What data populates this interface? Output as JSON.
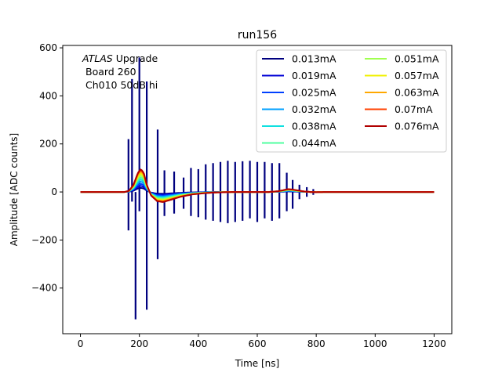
{
  "chart_data": {
    "type": "line",
    "title": "run156",
    "xlabel": "Time [ns]",
    "ylabel": "Amplitude [ADC counts]",
    "xlim": [
      -60,
      1260
    ],
    "ylim": [
      -590,
      610
    ],
    "xticks": [
      0,
      200,
      400,
      600,
      800,
      1000,
      1200
    ],
    "yticks": [
      -400,
      -200,
      0,
      200,
      400,
      600
    ],
    "xtick_labels": [
      "0",
      "200",
      "400",
      "600",
      "800",
      "1000",
      "1200"
    ],
    "ytick_labels": [
      "−400",
      "−200",
      "0",
      "200",
      "400",
      "600"
    ],
    "annotation": {
      "line1_italic": "ATLAS",
      "line1_rest": " Upgrade",
      "line2": "Board 260",
      "line3": "Ch010 50dB hi"
    },
    "legend_position": "upper-right",
    "spikes_first_series": [
      {
        "t": 163,
        "top": 220,
        "bottom": -160
      },
      {
        "t": 175,
        "top": 470,
        "bottom": -40
      },
      {
        "t": 187,
        "top": 0,
        "bottom": -530
      },
      {
        "t": 200,
        "top": 560,
        "bottom": -80
      },
      {
        "t": 225,
        "top": 460,
        "bottom": -490
      },
      {
        "t": 262,
        "top": 260,
        "bottom": -280
      },
      {
        "t": 285,
        "top": 90,
        "bottom": -100
      },
      {
        "t": 318,
        "top": 85,
        "bottom": -90
      },
      {
        "t": 350,
        "top": 60,
        "bottom": -70
      },
      {
        "t": 375,
        "top": 100,
        "bottom": -100
      },
      {
        "t": 400,
        "top": 95,
        "bottom": -105
      },
      {
        "t": 425,
        "top": 115,
        "bottom": -115
      },
      {
        "t": 450,
        "top": 120,
        "bottom": -120
      },
      {
        "t": 475,
        "top": 125,
        "bottom": -125
      },
      {
        "t": 500,
        "top": 130,
        "bottom": -130
      },
      {
        "t": 525,
        "top": 125,
        "bottom": -125
      },
      {
        "t": 550,
        "top": 128,
        "bottom": -120
      },
      {
        "t": 575,
        "top": 130,
        "bottom": -110
      },
      {
        "t": 600,
        "top": 125,
        "bottom": -125
      },
      {
        "t": 625,
        "top": 125,
        "bottom": -110
      },
      {
        "t": 650,
        "top": 120,
        "bottom": -120
      },
      {
        "t": 675,
        "top": 120,
        "bottom": -110
      },
      {
        "t": 700,
        "top": 80,
        "bottom": -80
      },
      {
        "t": 720,
        "top": 50,
        "bottom": -70
      },
      {
        "t": 743,
        "top": 30,
        "bottom": -30
      },
      {
        "t": 768,
        "top": 20,
        "bottom": -20
      },
      {
        "t": 790,
        "top": 12,
        "bottom": -12
      }
    ],
    "baseline_shape": {
      "t": [
        0,
        150,
        165,
        180,
        195,
        205,
        215,
        225,
        240,
        260,
        280,
        300,
        340,
        380,
        420,
        460,
        520,
        580,
        640,
        670,
        690,
        705,
        720,
        740,
        760,
        780,
        800,
        830,
        900,
        1200
      ],
      "v": [
        0,
        0,
        5,
        30,
        80,
        95,
        80,
        30,
        -15,
        -38,
        -42,
        -35,
        -20,
        -10,
        -5,
        -2,
        0,
        0,
        0,
        3,
        8,
        12,
        10,
        6,
        2,
        0,
        -1,
        0,
        0,
        0
      ]
    },
    "series": [
      {
        "name": "0.013mA",
        "color": "#00007f",
        "scale": 0.18
      },
      {
        "name": "0.019mA",
        "color": "#0000d6",
        "scale": 0.27
      },
      {
        "name": "0.025mA",
        "color": "#0040ff",
        "scale": 0.36
      },
      {
        "name": "0.032mA",
        "color": "#00a0ff",
        "scale": 0.46
      },
      {
        "name": "0.038mA",
        "color": "#10e0e0",
        "scale": 0.55
      },
      {
        "name": "0.044mA",
        "color": "#50ffa0",
        "scale": 0.64
      },
      {
        "name": "0.051mA",
        "color": "#a0ff50",
        "scale": 0.73
      },
      {
        "name": "0.057mA",
        "color": "#f0f000",
        "scale": 0.82
      },
      {
        "name": "0.063mA",
        "color": "#ffa800",
        "scale": 0.9
      },
      {
        "name": "0.07mA",
        "color": "#ff4000",
        "scale": 0.96
      },
      {
        "name": "0.076mA",
        "color": "#b00000",
        "scale": 1.0
      }
    ]
  }
}
